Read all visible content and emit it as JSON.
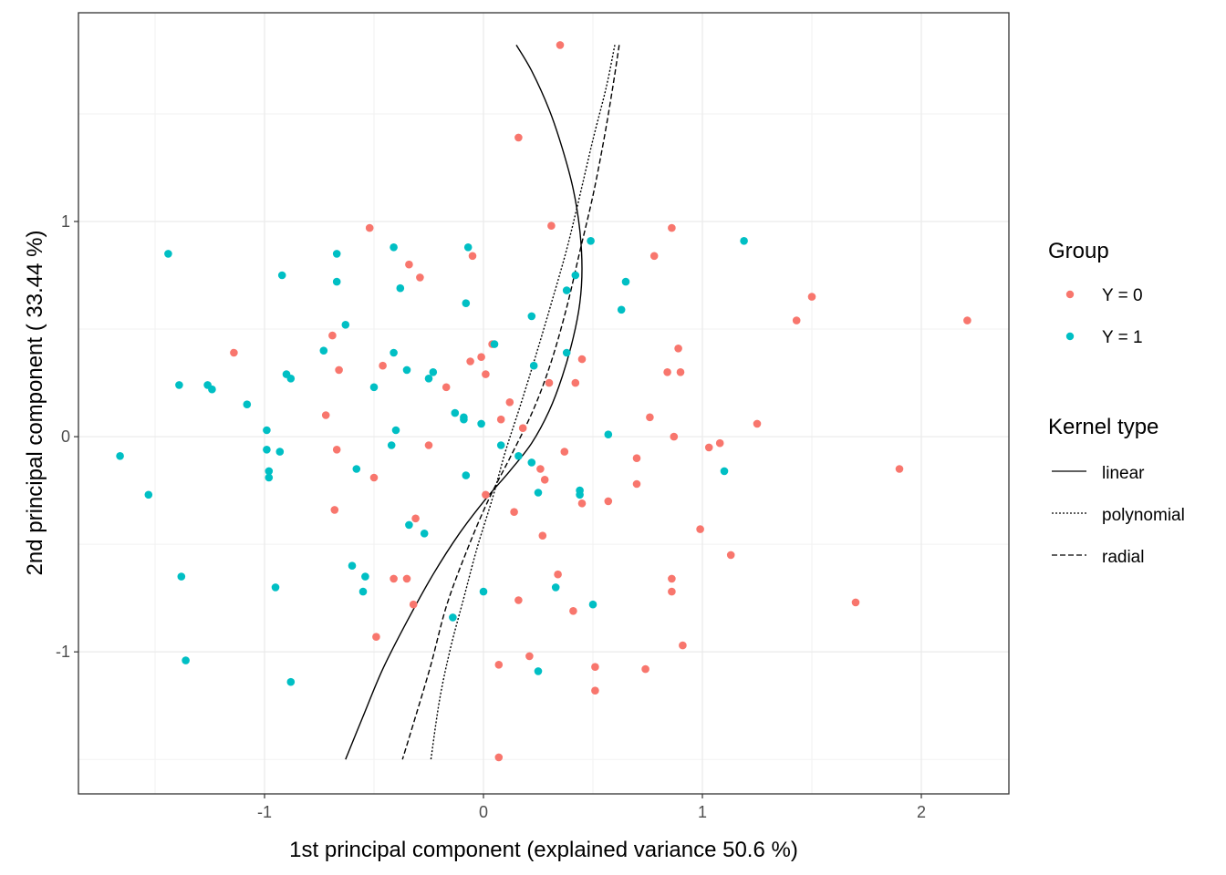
{
  "chart_data": {
    "type": "scatter",
    "xlabel": "1st principal component (explained variance 50.6 %)",
    "ylabel": "2nd principal component ( 33.44 %)",
    "xlim": [
      -1.85,
      2.4
    ],
    "ylim": [
      -1.66,
      1.97
    ],
    "x_ticks": [
      -1,
      0,
      1,
      2
    ],
    "x_tick_labels": [
      "-1",
      "0",
      "1",
      "2"
    ],
    "y_ticks": [
      -1,
      0,
      1
    ],
    "y_tick_labels": [
      "-1",
      "0",
      "1"
    ],
    "grid": true,
    "legend_placement": "right",
    "legends": {
      "group": {
        "title": "Group",
        "entries": [
          {
            "label": "Y = 0",
            "color": "#F8766D"
          },
          {
            "label": "Y = 1",
            "color": "#00BFC4"
          }
        ]
      },
      "kernel": {
        "title": "Kernel type",
        "entries": [
          {
            "label": "linear",
            "dash": "solid"
          },
          {
            "label": "polynomial",
            "dash": "dotted"
          },
          {
            "label": "radial",
            "dash": "dashed"
          }
        ]
      }
    },
    "series": [
      {
        "name": "Y = 0",
        "color": "#F8766D",
        "points": [
          [
            0.35,
            1.82
          ],
          [
            0.16,
            1.39
          ],
          [
            -0.52,
            0.97
          ],
          [
            0.31,
            0.98
          ],
          [
            0.86,
            0.97
          ],
          [
            -0.05,
            0.84
          ],
          [
            0.78,
            0.84
          ],
          [
            -0.34,
            0.8
          ],
          [
            -0.29,
            0.74
          ],
          [
            1.5,
            0.65
          ],
          [
            1.43,
            0.54
          ],
          [
            2.21,
            0.54
          ],
          [
            -0.69,
            0.47
          ],
          [
            0.04,
            0.43
          ],
          [
            -1.14,
            0.39
          ],
          [
            -0.01,
            0.37
          ],
          [
            -0.06,
            0.35
          ],
          [
            0.45,
            0.36
          ],
          [
            0.89,
            0.41
          ],
          [
            -0.46,
            0.33
          ],
          [
            -0.66,
            0.31
          ],
          [
            0.01,
            0.29
          ],
          [
            0.84,
            0.3
          ],
          [
            0.9,
            0.3
          ],
          [
            0.3,
            0.25
          ],
          [
            0.42,
            0.25
          ],
          [
            -0.17,
            0.23
          ],
          [
            0.12,
            0.16
          ],
          [
            0.76,
            0.09
          ],
          [
            0.08,
            0.08
          ],
          [
            -0.72,
            0.1
          ],
          [
            1.25,
            0.06
          ],
          [
            0.18,
            0.04
          ],
          [
            -0.25,
            -0.04
          ],
          [
            0.87,
            0.0
          ],
          [
            1.08,
            -0.03
          ],
          [
            1.03,
            -0.05
          ],
          [
            -0.67,
            -0.06
          ],
          [
            0.37,
            -0.07
          ],
          [
            0.7,
            -0.1
          ],
          [
            0.26,
            -0.15
          ],
          [
            1.9,
            -0.15
          ],
          [
            -0.5,
            -0.19
          ],
          [
            0.28,
            -0.2
          ],
          [
            0.7,
            -0.22
          ],
          [
            0.01,
            -0.27
          ],
          [
            0.45,
            -0.31
          ],
          [
            0.57,
            -0.3
          ],
          [
            0.14,
            -0.35
          ],
          [
            -0.68,
            -0.34
          ],
          [
            -0.31,
            -0.38
          ],
          [
            0.27,
            -0.46
          ],
          [
            0.99,
            -0.43
          ],
          [
            1.13,
            -0.55
          ],
          [
            0.34,
            -0.64
          ],
          [
            -0.41,
            -0.66
          ],
          [
            -0.35,
            -0.66
          ],
          [
            0.86,
            -0.66
          ],
          [
            0.86,
            -0.72
          ],
          [
            0.16,
            -0.76
          ],
          [
            -0.32,
            -0.78
          ],
          [
            1.7,
            -0.77
          ],
          [
            0.41,
            -0.81
          ],
          [
            -0.49,
            -0.93
          ],
          [
            0.91,
            -0.97
          ],
          [
            0.21,
            -1.02
          ],
          [
            0.07,
            -1.06
          ],
          [
            0.51,
            -1.07
          ],
          [
            0.74,
            -1.08
          ],
          [
            0.51,
            -1.18
          ],
          [
            0.07,
            -1.49
          ]
        ]
      },
      {
        "name": "Y = 1",
        "color": "#00BFC4",
        "points": [
          [
            -1.44,
            0.85
          ],
          [
            -0.67,
            0.85
          ],
          [
            -0.41,
            0.88
          ],
          [
            -0.07,
            0.88
          ],
          [
            0.49,
            0.91
          ],
          [
            1.19,
            0.91
          ],
          [
            -0.92,
            0.75
          ],
          [
            -0.67,
            0.72
          ],
          [
            0.42,
            0.75
          ],
          [
            0.65,
            0.72
          ],
          [
            -0.38,
            0.69
          ],
          [
            0.38,
            0.68
          ],
          [
            -0.08,
            0.62
          ],
          [
            0.63,
            0.59
          ],
          [
            0.22,
            0.56
          ],
          [
            -0.63,
            0.52
          ],
          [
            0.05,
            0.43
          ],
          [
            -0.73,
            0.4
          ],
          [
            -0.41,
            0.39
          ],
          [
            0.38,
            0.39
          ],
          [
            -0.35,
            0.31
          ],
          [
            0.23,
            0.33
          ],
          [
            -0.25,
            0.27
          ],
          [
            -0.23,
            0.3
          ],
          [
            -0.9,
            0.29
          ],
          [
            -0.88,
            0.27
          ],
          [
            -1.26,
            0.24
          ],
          [
            -1.24,
            0.22
          ],
          [
            -1.39,
            0.24
          ],
          [
            -0.5,
            0.23
          ],
          [
            -1.08,
            0.15
          ],
          [
            -0.13,
            0.11
          ],
          [
            -0.09,
            0.08
          ],
          [
            -0.09,
            0.09
          ],
          [
            -0.01,
            0.06
          ],
          [
            0.57,
            0.01
          ],
          [
            -0.99,
            0.03
          ],
          [
            -0.4,
            0.03
          ],
          [
            -0.42,
            -0.04
          ],
          [
            0.08,
            -0.04
          ],
          [
            0.16,
            -0.09
          ],
          [
            -0.99,
            -0.06
          ],
          [
            -0.93,
            -0.07
          ],
          [
            -1.66,
            -0.09
          ],
          [
            0.22,
            -0.12
          ],
          [
            1.1,
            -0.16
          ],
          [
            -0.58,
            -0.15
          ],
          [
            -0.98,
            -0.16
          ],
          [
            -0.98,
            -0.19
          ],
          [
            -0.08,
            -0.18
          ],
          [
            0.44,
            -0.25
          ],
          [
            0.44,
            -0.27
          ],
          [
            0.25,
            -0.26
          ],
          [
            -1.53,
            -0.27
          ],
          [
            -0.34,
            -0.41
          ],
          [
            -0.27,
            -0.45
          ],
          [
            -0.6,
            -0.6
          ],
          [
            -1.38,
            -0.65
          ],
          [
            -0.54,
            -0.65
          ],
          [
            -0.95,
            -0.7
          ],
          [
            0.33,
            -0.7
          ],
          [
            -0.55,
            -0.72
          ],
          [
            0.0,
            -0.72
          ],
          [
            0.5,
            -0.78
          ],
          [
            -0.14,
            -0.84
          ],
          [
            -1.36,
            -1.04
          ],
          [
            0.25,
            -1.09
          ],
          [
            -0.88,
            -1.14
          ]
        ]
      }
    ],
    "boundaries": [
      {
        "name": "linear",
        "dash": "solid",
        "points": [
          [
            0.15,
            1.82
          ],
          [
            0.22,
            1.7
          ],
          [
            0.3,
            1.52
          ],
          [
            0.36,
            1.34
          ],
          [
            0.41,
            1.15
          ],
          [
            0.44,
            0.96
          ],
          [
            0.45,
            0.78
          ],
          [
            0.44,
            0.62
          ],
          [
            0.41,
            0.46
          ],
          [
            0.36,
            0.28
          ],
          [
            0.3,
            0.12
          ],
          [
            0.22,
            -0.03
          ],
          [
            0.12,
            -0.16
          ],
          [
            0.01,
            -0.29
          ],
          [
            -0.11,
            -0.45
          ],
          [
            -0.23,
            -0.64
          ],
          [
            -0.35,
            -0.86
          ],
          [
            -0.46,
            -1.08
          ],
          [
            -0.55,
            -1.3
          ],
          [
            -0.63,
            -1.5
          ]
        ]
      },
      {
        "name": "polynomial",
        "dash": "dotted",
        "points": [
          [
            0.6,
            1.82
          ],
          [
            0.56,
            1.62
          ],
          [
            0.5,
            1.38
          ],
          [
            0.44,
            1.12
          ],
          [
            0.38,
            0.87
          ],
          [
            0.31,
            0.62
          ],
          [
            0.24,
            0.38
          ],
          [
            0.17,
            0.15
          ],
          [
            0.1,
            -0.07
          ],
          [
            0.04,
            -0.29
          ],
          [
            -0.03,
            -0.52
          ],
          [
            -0.09,
            -0.75
          ],
          [
            -0.15,
            -0.98
          ],
          [
            -0.2,
            -1.22
          ],
          [
            -0.24,
            -1.5
          ]
        ]
      },
      {
        "name": "radial",
        "dash": "dashed",
        "points": [
          [
            0.62,
            1.82
          ],
          [
            0.59,
            1.62
          ],
          [
            0.55,
            1.38
          ],
          [
            0.5,
            1.12
          ],
          [
            0.44,
            0.86
          ],
          [
            0.38,
            0.6
          ],
          [
            0.31,
            0.35
          ],
          [
            0.23,
            0.13
          ],
          [
            0.13,
            -0.08
          ],
          [
            0.02,
            -0.3
          ],
          [
            -0.08,
            -0.54
          ],
          [
            -0.17,
            -0.79
          ],
          [
            -0.24,
            -1.06
          ],
          [
            -0.31,
            -1.3
          ],
          [
            -0.37,
            -1.5
          ]
        ]
      }
    ]
  }
}
